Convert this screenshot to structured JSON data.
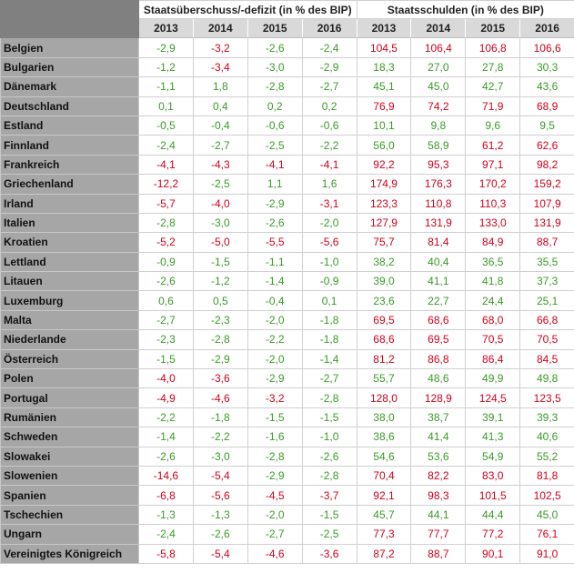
{
  "table": {
    "groups": [
      {
        "title": "Staatsüberschuss/-defizit (in % des BIP)",
        "years": [
          "2013",
          "2014",
          "2015",
          "2016"
        ]
      },
      {
        "title": "Staatsschulden (in % des BIP)",
        "years": [
          "2013",
          "2014",
          "2015",
          "2016"
        ]
      }
    ],
    "rows": [
      {
        "country": "Belgien",
        "values": [
          [
            "-2,9",
            "-3,2",
            "-2,6",
            "-2,4"
          ],
          [
            "104,5",
            "106,4",
            "106,8",
            "106,6"
          ]
        ]
      },
      {
        "country": "Bulgarien",
        "values": [
          [
            "-1,2",
            "-3,4",
            "-3,0",
            "-2,9"
          ],
          [
            "18,3",
            "27,0",
            "27,8",
            "30,3"
          ]
        ]
      },
      {
        "country": "Dänemark",
        "values": [
          [
            "-1,1",
            "1,8",
            "-2,8",
            "-2,7"
          ],
          [
            "45,1",
            "45,0",
            "42,7",
            "43,6"
          ]
        ]
      },
      {
        "country": "Deutschland",
        "values": [
          [
            "0,1",
            "0,4",
            "0,2",
            "0,2"
          ],
          [
            "76,9",
            "74,2",
            "71,9",
            "68,9"
          ]
        ]
      },
      {
        "country": "Estland",
        "values": [
          [
            "-0,5",
            "-0,4",
            "-0,6",
            "-0,6"
          ],
          [
            "10,1",
            "9,8",
            "9,6",
            "9,5"
          ]
        ]
      },
      {
        "country": "Finnland",
        "values": [
          [
            "-2,4",
            "-2,7",
            "-2,5",
            "-2,2"
          ],
          [
            "56,0",
            "58,9",
            "61,2",
            "62,6"
          ]
        ]
      },
      {
        "country": "Frankreich",
        "values": [
          [
            "-4,1",
            "-4,3",
            "-4,1",
            "-4,1"
          ],
          [
            "92,2",
            "95,3",
            "97,1",
            "98,2"
          ]
        ]
      },
      {
        "country": "Griechenland",
        "values": [
          [
            "-12,2",
            "-2,5",
            "1,1",
            "1,6"
          ],
          [
            "174,9",
            "176,3",
            "170,2",
            "159,2"
          ]
        ]
      },
      {
        "country": "Irland",
        "values": [
          [
            "-5,7",
            "-4,0",
            "-2,9",
            "-3,1"
          ],
          [
            "123,3",
            "110,8",
            "110,3",
            "107,9"
          ]
        ]
      },
      {
        "country": "Italien",
        "values": [
          [
            "-2,8",
            "-3,0",
            "-2,6",
            "-2,0"
          ],
          [
            "127,9",
            "131,9",
            "133,0",
            "131,9"
          ]
        ]
      },
      {
        "country": "Kroatien",
        "values": [
          [
            "-5,2",
            "-5,0",
            "-5,5",
            "-5,6"
          ],
          [
            "75,7",
            "81,4",
            "84,9",
            "88,7"
          ]
        ]
      },
      {
        "country": "Lettland",
        "values": [
          [
            "-0,9",
            "-1,5",
            "-1,1",
            "-1,0"
          ],
          [
            "38,2",
            "40,4",
            "36,5",
            "35,5"
          ]
        ]
      },
      {
        "country": "Litauen",
        "values": [
          [
            "-2,6",
            "-1,2",
            "-1,4",
            "-0,9"
          ],
          [
            "39,0",
            "41,1",
            "41,8",
            "37,3"
          ]
        ]
      },
      {
        "country": "Luxemburg",
        "values": [
          [
            "0,6",
            "0,5",
            "-0,4",
            "0,1"
          ],
          [
            "23,6",
            "22,7",
            "24,4",
            "25,1"
          ]
        ]
      },
      {
        "country": "Malta",
        "values": [
          [
            "-2,7",
            "-2,3",
            "-2,0",
            "-1,8"
          ],
          [
            "69,5",
            "68,6",
            "68,0",
            "66,8"
          ]
        ]
      },
      {
        "country": "Niederlande",
        "values": [
          [
            "-2,3",
            "-2,8",
            "-2,2",
            "-1,8"
          ],
          [
            "68,6",
            "69,5",
            "70,5",
            "70,5"
          ]
        ]
      },
      {
        "country": "Österreich",
        "values": [
          [
            "-1,5",
            "-2,9",
            "-2,0",
            "-1,4"
          ],
          [
            "81,2",
            "86,8",
            "86,4",
            "84,5"
          ]
        ]
      },
      {
        "country": "Polen",
        "values": [
          [
            "-4,0",
            "-3,6",
            "-2,9",
            "-2,7"
          ],
          [
            "55,7",
            "48,6",
            "49,9",
            "49,8"
          ]
        ]
      },
      {
        "country": "Portugal",
        "values": [
          [
            "-4,9",
            "-4,6",
            "-3,2",
            "-2,8"
          ],
          [
            "128,0",
            "128,9",
            "124,5",
            "123,5"
          ]
        ]
      },
      {
        "country": "Rumänien",
        "values": [
          [
            "-2,2",
            "-1,8",
            "-1,5",
            "-1,5"
          ],
          [
            "38,0",
            "38,7",
            "39,1",
            "39,3"
          ]
        ]
      },
      {
        "country": "Schweden",
        "values": [
          [
            "-1,4",
            "-2,2",
            "-1,6",
            "-1,0"
          ],
          [
            "38,6",
            "41,4",
            "41,3",
            "40,6"
          ]
        ]
      },
      {
        "country": "Slowakei",
        "values": [
          [
            "-2,6",
            "-3,0",
            "-2,8",
            "-2,6"
          ],
          [
            "54,6",
            "53,6",
            "54,9",
            "55,2"
          ]
        ]
      },
      {
        "country": "Slowenien",
        "values": [
          [
            "-14,6",
            "-5,4",
            "-2,9",
            "-2,8"
          ],
          [
            "70,4",
            "82,2",
            "83,0",
            "81,8"
          ]
        ]
      },
      {
        "country": "Spanien",
        "values": [
          [
            "-6,8",
            "-5,6",
            "-4,5",
            "-3,7"
          ],
          [
            "92,1",
            "98,3",
            "101,5",
            "102,5"
          ]
        ]
      },
      {
        "country": "Tschechien",
        "values": [
          [
            "-1,3",
            "-1,3",
            "-2,0",
            "-1,5"
          ],
          [
            "45,7",
            "44,1",
            "44,4",
            "45,0"
          ]
        ]
      },
      {
        "country": "Ungarn",
        "values": [
          [
            "-2,4",
            "-2,6",
            "-2,7",
            "-2,5"
          ],
          [
            "77,3",
            "77,7",
            "77,2",
            "76,1"
          ]
        ]
      },
      {
        "country": "Vereinigtes Königreich",
        "values": [
          [
            "-5,8",
            "-5,4",
            "-4,6",
            "-3,6"
          ],
          [
            "87,2",
            "88,7",
            "90,1",
            "91,0"
          ]
        ]
      }
    ]
  }
}
